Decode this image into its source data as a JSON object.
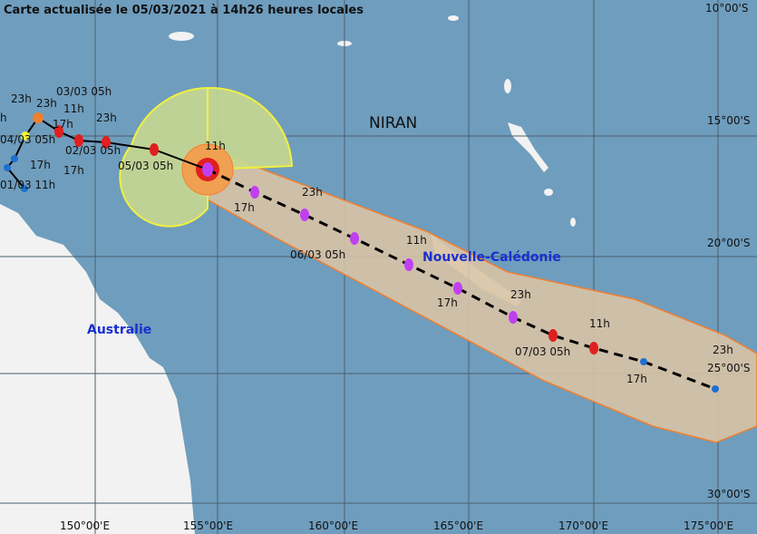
{
  "title": "Carte actualisée le 05/03/2021 à 14h26 heures locales",
  "storm_name": "NIRAN",
  "places": {
    "australia": "Australie",
    "new_caledonia": "Nouvelle-Calédonie"
  },
  "axes": {
    "lon_labels": [
      "150°00'E",
      "155°00'E",
      "160°00'E",
      "165°00'E",
      "170°00'E",
      "175°00'E"
    ],
    "lat_labels": [
      "10°00'S",
      "15°00'S",
      "20°00'S",
      "25°00'S",
      "30°00'S"
    ]
  },
  "colors": {
    "sea": "#6f9dbd",
    "land": "#f2f2f2",
    "cone": "#d8c3a5",
    "cone_edge": "#f08030",
    "wind_zone": "#c8d890",
    "wind_edge": "#f0f040",
    "past_track": "#000000"
  },
  "track_labels": [
    "23h",
    "23h",
    "03/03 05h",
    "11h",
    "23h",
    "17h",
    "04/03 05h",
    "02/03 05h",
    "17h",
    "17h",
    "01/03 11h",
    "h",
    "11h",
    "05/03 05h",
    "17h",
    "23h",
    "06/03 05h",
    "11h",
    "17h",
    "23h",
    "07/03 05h",
    "11h",
    "17h",
    "23h"
  ]
}
